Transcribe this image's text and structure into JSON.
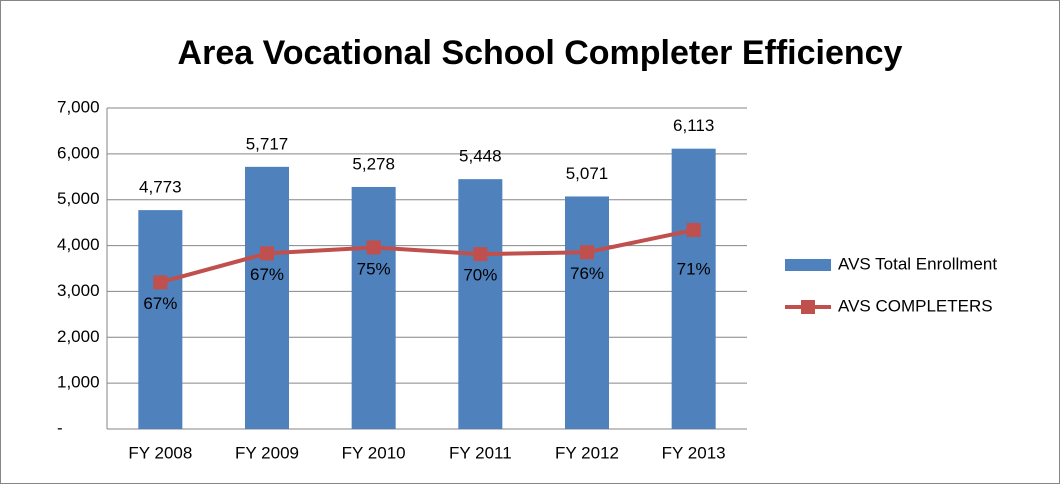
{
  "chart_data": {
    "type": "bar_line",
    "title": "Area Vocational School Completer Efficiency",
    "categories": [
      "FY 2008",
      "FY 2009",
      "FY 2010",
      "FY 2011",
      "FY 2012",
      "FY 2013"
    ],
    "series": [
      {
        "name": "AVS Total Enrollment",
        "type": "bar",
        "color": "#4f81bd",
        "values": [
          4773,
          5717,
          5278,
          5448,
          5071,
          6113
        ],
        "value_labels": [
          "4,773",
          "5,717",
          "5,278",
          "5,448",
          "5,071",
          "6,113"
        ]
      },
      {
        "name": "AVS COMPLETERS",
        "type": "line",
        "color": "#c0504d",
        "values": [
          3198,
          3830,
          3959,
          3814,
          3854,
          4340
        ],
        "labels": [
          "67%",
          "67%",
          "75%",
          "70%",
          "76%",
          "71%"
        ]
      }
    ],
    "ylim": [
      0,
      7000
    ],
    "yticks": [
      {
        "value": 0,
        "label": "-"
      },
      {
        "value": 1000,
        "label": "1,000"
      },
      {
        "value": 2000,
        "label": "2,000"
      },
      {
        "value": 3000,
        "label": "3,000"
      },
      {
        "value": 4000,
        "label": "4,000"
      },
      {
        "value": 5000,
        "label": "5,000"
      },
      {
        "value": 6000,
        "label": "6,000"
      },
      {
        "value": 7000,
        "label": "7,000"
      }
    ],
    "grid": true,
    "legend": "right"
  }
}
